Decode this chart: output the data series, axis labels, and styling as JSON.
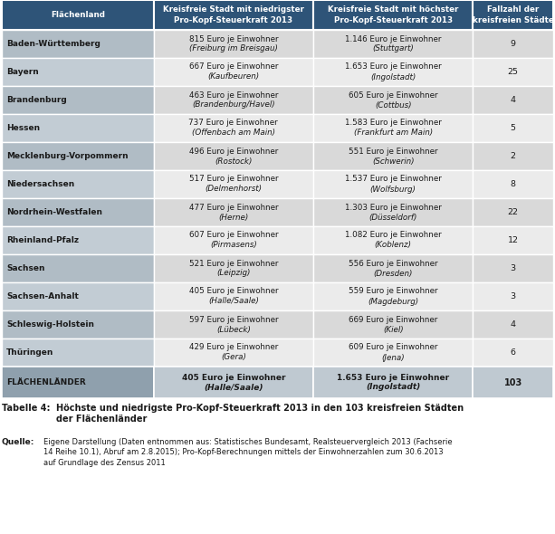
{
  "header": [
    "Flächenland",
    "Kreisfreie Stadt mit niedrigster\nPro-Kopf-Steuerkraft 2013",
    "Kreisfreie Stadt mit höchster\nPro-Kopf-Steuerkraft 2013",
    "Fallzahl der\nkreisfreien Städte"
  ],
  "rows": [
    [
      "Baden-Württemberg",
      "815 Euro je Einwohner\n(Freiburg im Breisgau)",
      "1.146 Euro je Einwohner\n(Stuttgart)",
      "9"
    ],
    [
      "Bayern",
      "667 Euro je Einwohner\n(Kaufbeuren)",
      "1.653 Euro je Einwohner\n(Ingolstadt)",
      "25"
    ],
    [
      "Brandenburg",
      "463 Euro je Einwohner\n(Brandenburg/Havel)",
      "605 Euro je Einwohner\n(Cottbus)",
      "4"
    ],
    [
      "Hessen",
      "737 Euro je Einwohner\n(Offenbach am Main)",
      "1.583 Euro je Einwohner\n(Frankfurt am Main)",
      "5"
    ],
    [
      "Mecklenburg-Vorpommern",
      "496 Euro je Einwohner\n(Rostock)",
      "551 Euro je Einwohner\n(Schwerin)",
      "2"
    ],
    [
      "Niedersachsen",
      "517 Euro je Einwohner\n(Delmenhorst)",
      "1.537 Euro je Einwohner\n(Wolfsburg)",
      "8"
    ],
    [
      "Nordrhein-Westfalen",
      "477 Euro je Einwohner\n(Herne)",
      "1.303 Euro je Einwohner\n(Düsseldorf)",
      "22"
    ],
    [
      "Rheinland-Pfalz",
      "607 Euro je Einwohner\n(Pirmasens)",
      "1.082 Euro je Einwohner\n(Koblenz)",
      "12"
    ],
    [
      "Sachsen",
      "521 Euro je Einwohner\n(Leipzig)",
      "556 Euro je Einwohner\n(Dresden)",
      "3"
    ],
    [
      "Sachsen-Anhalt",
      "405 Euro je Einwohner\n(Halle/Saale)",
      "559 Euro je Einwohner\n(Magdeburg)",
      "3"
    ],
    [
      "Schleswig-Holstein",
      "597 Euro je Einwohner\n(Lübeck)",
      "669 Euro je Einwohner\n(Kiel)",
      "4"
    ],
    [
      "Thüringen",
      "429 Euro je Einwohner\n(Gera)",
      "609 Euro je Einwohner\n(Jena)",
      "6"
    ]
  ],
  "footer": [
    "FLÄCHENLÄNDER",
    "405 Euro je Einwohner\n(Halle/Saale)",
    "1.653 Euro je Einwohner\n(Ingolstadt)",
    "103"
  ],
  "header_bg": "#2e5478",
  "header_text": "#ffffff",
  "row_bg_odd": "#d9d9d9",
  "row_bg_even": "#ebebeb",
  "footer_bg": "#bfc9d1",
  "border_color": "#ffffff",
  "col0_bg_odd": "#b0bcc5",
  "col0_bg_even": "#c2ccd4",
  "footer_col0_bg": "#8fa0ad",
  "footer_data_bg": "#bfc9d1",
  "table_caption_label": "Tabelle 4:",
  "table_caption_text": "Höchste und niedrigste Pro-Kopf-Steuerkraft 2013 in den 103 kreisfreien Städten\nder Flächenländer",
  "source_label": "Quelle:",
  "source_text": "Eigene Darstellung (Daten entnommen aus: Statistisches Bundesamt, Realsteuervergleich 2013 (Fachserie\n14 Reihe 10.1), Abruf am 2.8.2015); Pro-Kopf-Berechnungen mittels der Einwohnerzahlen zum 30.6.2013\nauf Grundlage des Zensus 2011"
}
